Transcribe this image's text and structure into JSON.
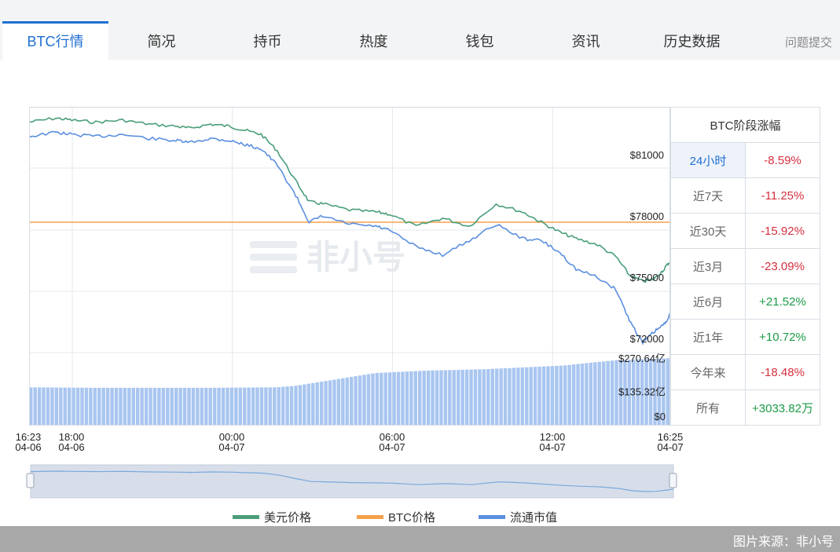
{
  "tabs": [
    {
      "label": "BTC行情",
      "active": true
    },
    {
      "label": "简况"
    },
    {
      "label": "持币"
    },
    {
      "label": "热度"
    },
    {
      "label": "钱包"
    },
    {
      "label": "资讯"
    },
    {
      "label": "历史数据"
    }
  ],
  "feedback_label": "问题提交",
  "period_table": {
    "header": "BTC阶段涨幅",
    "rows": [
      {
        "label": "24小时",
        "value": "-8.59%",
        "trend": "neg",
        "selected": true
      },
      {
        "label": "近7天",
        "value": "-11.25%",
        "trend": "neg"
      },
      {
        "label": "近30天",
        "value": "-15.92%",
        "trend": "neg"
      },
      {
        "label": "近3月",
        "value": "-23.09%",
        "trend": "neg"
      },
      {
        "label": "近6月",
        "value": "+21.52%",
        "trend": "pos"
      },
      {
        "label": "近1年",
        "value": "+10.72%",
        "trend": "pos"
      },
      {
        "label": "今年来",
        "value": "-18.48%",
        "trend": "neg"
      },
      {
        "label": "所有",
        "value": "+3033.82万",
        "trend": "pos"
      }
    ]
  },
  "legend": [
    {
      "label": "美元价格",
      "color": "#4a9e7a"
    },
    {
      "label": "BTC价格",
      "color": "#f5a04a"
    },
    {
      "label": "流通市值",
      "color": "#5b8fe0"
    }
  ],
  "watermark": "非小号",
  "source_text": "图片来源：非小号",
  "chart_data": {
    "type": "line",
    "x_ticks": [
      {
        "time": "16:23",
        "date": "04-06"
      },
      {
        "time": "18:00",
        "date": "04-06"
      },
      {
        "time": "00:00",
        "date": "04-07"
      },
      {
        "time": "06:00",
        "date": "04-07"
      },
      {
        "time": "12:00",
        "date": "04-07"
      },
      {
        "time": "16:25",
        "date": "04-07"
      }
    ],
    "x_range_hours": [
      0,
      24.03
    ],
    "price_axis": {
      "ticks": [
        "$81000",
        "$78000",
        "$75000",
        "$72000"
      ],
      "values": [
        81000,
        78000,
        75000,
        72000
      ]
    },
    "volume_axis": {
      "ticks": [
        "$270.64亿",
        "$135.32亿",
        "$0"
      ],
      "values": [
        270.64,
        135.32,
        0
      ]
    },
    "btc_price_reference": 78000,
    "series": [
      {
        "name": "美元价格",
        "color": "#4a9e7a",
        "x": [
          0,
          1,
          1.6,
          2.5,
          3.5,
          4.5,
          5.5,
          6,
          6.8,
          7.5,
          8.1,
          8.7,
          9.3,
          10,
          10.5,
          11,
          12,
          13,
          13.5,
          14.5,
          15.5,
          16.5,
          17.5,
          18.5,
          19.2,
          19.9,
          20.5,
          21.3,
          22,
          22.5,
          23,
          23.4,
          23.8,
          24.03
        ],
        "y": [
          82900,
          83100,
          83000,
          82900,
          83000,
          82800,
          82700,
          82600,
          82800,
          82700,
          82500,
          82300,
          81500,
          80000,
          79000,
          78900,
          78600,
          78500,
          78400,
          77800,
          78200,
          77800,
          78900,
          78500,
          78000,
          77500,
          77200,
          76900,
          76300,
          75400,
          75100,
          75200,
          75700,
          76100
        ]
      },
      {
        "name": "流通市值",
        "color": "#5b8fe0",
        "x": [
          0,
          1,
          1.6,
          2.5,
          3.5,
          4.5,
          5.5,
          6,
          6.8,
          7.5,
          8.1,
          8.7,
          9.3,
          10,
          10.5,
          11,
          12,
          13,
          13.5,
          14.5,
          15.5,
          16.5,
          17.5,
          18.5,
          19.2,
          19.9,
          20.5,
          21.3,
          22,
          22.5,
          23,
          23.4,
          23.8,
          24.03
        ],
        "y": [
          82200,
          82400,
          82300,
          82200,
          82300,
          82100,
          82000,
          81900,
          82100,
          82000,
          81800,
          81600,
          80800,
          79300,
          78000,
          78300,
          77900,
          77800,
          77600,
          76800,
          76400,
          77100,
          77900,
          77200,
          77100,
          76500,
          75700,
          75300,
          74700,
          73200,
          72100,
          72600,
          73000,
          73500
        ]
      }
    ],
    "volume_bars_yi": {
      "x_start": 0,
      "x_end": 24.03,
      "count": 150,
      "profile_x": [
        0,
        2.5,
        6.8,
        9.3,
        10,
        13,
        15,
        17,
        20,
        22,
        24.03
      ],
      "profile_y": [
        152,
        150,
        150,
        152,
        158,
        210,
        220,
        225,
        240,
        262,
        270
      ]
    },
    "gridlines": true
  }
}
